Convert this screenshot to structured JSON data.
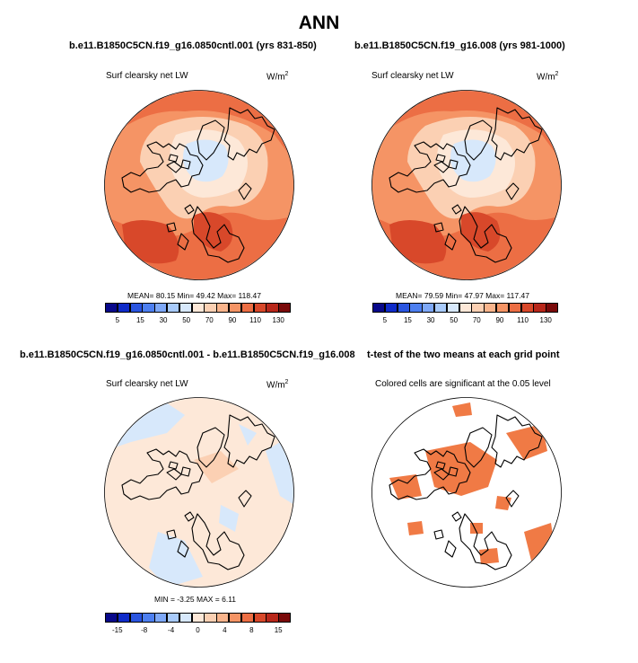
{
  "title": "ANN",
  "panels": {
    "control": {
      "title": "b.e11.B1850C5CN.f19_g16.0850cntl.001 (yrs 831-850)",
      "variable": "Surf clearsky net LW",
      "units_base": "W/m",
      "units_exp": "2",
      "stats": "MEAN=  80.15  Min=  49.42  Max= 118.47"
    },
    "test": {
      "title": "b.e11.B1850C5CN.f19_g16.008 (yrs 981-1000)",
      "variable": "Surf clearsky net LW",
      "units_base": "W/m",
      "units_exp": "2",
      "stats": "MEAN=  79.59  Min=  47.97  Max= 117.47"
    },
    "difference": {
      "title": "b.e11.B1850C5CN.f19_g16.0850cntl.001 - b.e11.B1850C5CN.f19_g16.008",
      "variable": "Surf clearsky net LW",
      "units_base": "W/m",
      "units_exp": "2",
      "stats": "MIN =  -3.25 MAX =   6.11"
    },
    "ttest": {
      "title": "t-test of the two means at each grid point",
      "variable": "Colored cells are significant at the 0.05 level",
      "significance_color": "#f07a45"
    }
  },
  "colorbars": {
    "absolute": {
      "colors": [
        "#08088a",
        "#0f2bc9",
        "#2a55e0",
        "#4d7ff0",
        "#7ea8f7",
        "#a8cafa",
        "#d7e8fb",
        "#fde8d8",
        "#fbd0b3",
        "#f9b48c",
        "#f59465",
        "#ec6e44",
        "#d8482a",
        "#b8271a",
        "#7a0a0a"
      ],
      "labels": [
        "5",
        "15",
        "30",
        "50",
        "70",
        "90",
        "110",
        "130"
      ]
    },
    "difference": {
      "colors": [
        "#08088a",
        "#0f2bc9",
        "#2a55e0",
        "#4d7ff0",
        "#7ea8f7",
        "#a8cafa",
        "#d7e8fb",
        "#fde8d8",
        "#fbd0b3",
        "#f9b48c",
        "#f59465",
        "#ec6e44",
        "#d8482a",
        "#b8271a",
        "#7a0a0a"
      ],
      "labels": [
        "-15",
        "-8",
        "-4",
        "0",
        "4",
        "8",
        "15"
      ]
    }
  },
  "map_colors": {
    "mid": "#f59465",
    "outer": "#ec6e44",
    "light": "#fbd0b3",
    "pale": "#fde8d8",
    "ice": "#d7e8fb",
    "deep": "#d8482a",
    "diff_bg": "#fde8d8",
    "diff_neg": "#d7e8fb",
    "diff_pos": "#fbd0b3",
    "coast": "#000000"
  }
}
